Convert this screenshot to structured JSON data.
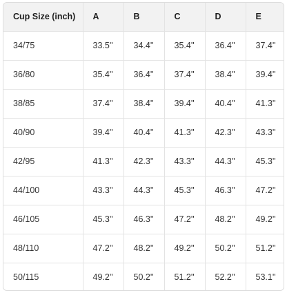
{
  "table": {
    "headers": [
      "Cup Size (inch)",
      "A",
      "B",
      "C",
      "D",
      "E"
    ],
    "rows": [
      [
        "34/75",
        "33.5''",
        "34.4''",
        "35.4''",
        "36.4''",
        "37.4''"
      ],
      [
        "36/80",
        "35.4''",
        "36.4''",
        "37.4''",
        "38.4''",
        "39.4''"
      ],
      [
        "38/85",
        "37.4''",
        "38.4''",
        "39.4''",
        "40.4''",
        "41.3''"
      ],
      [
        "40/90",
        "39.4''",
        "40.4''",
        "41.3''",
        "42.3''",
        "43.3''"
      ],
      [
        "42/95",
        "41.3''",
        "42.3''",
        "43.3''",
        "44.3''",
        "45.3''"
      ],
      [
        "44/100",
        "43.3''",
        "44.3''",
        "45.3''",
        "46.3''",
        "47.2''"
      ],
      [
        "46/105",
        "45.3''",
        "46.3''",
        "47.2''",
        "48.2''",
        "49.2''"
      ],
      [
        "48/110",
        "47.2''",
        "48.2''",
        "49.2''",
        "50.2''",
        "51.2''"
      ],
      [
        "50/115",
        "49.2''",
        "50.2''",
        "51.2''",
        "52.2''",
        "53.1''"
      ]
    ]
  }
}
